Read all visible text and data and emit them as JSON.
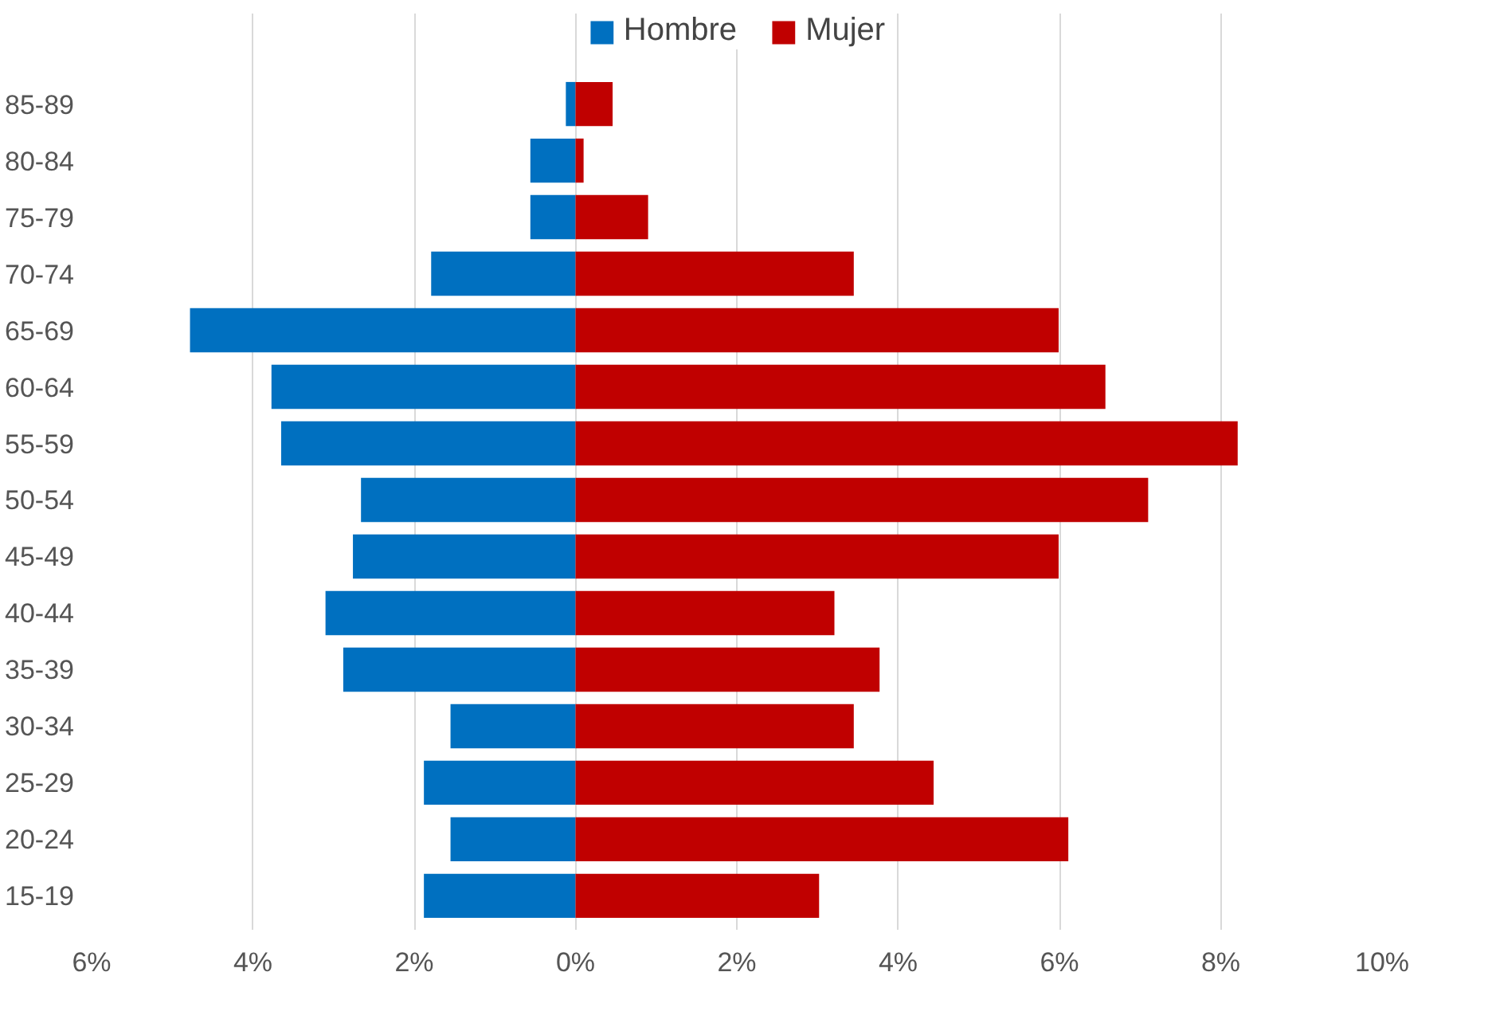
{
  "chart_data": {
    "type": "bar",
    "orientation": "horizontal",
    "stacked": true,
    "categories": [
      "85-89",
      "80-84",
      "75-79",
      "70-74",
      "65-69",
      "60-64",
      "55-59",
      "50-54",
      "45-49",
      "40-44",
      "35-39",
      "30-34",
      "25-29",
      "20-24",
      "15-19"
    ],
    "series": [
      {
        "name": "Hombre",
        "color": "#0070c0",
        "values": [
          -0.12,
          -0.56,
          -0.56,
          -1.79,
          -4.78,
          -3.77,
          -3.65,
          -2.66,
          -2.76,
          -3.1,
          -2.88,
          -1.55,
          -1.88,
          -1.55,
          -1.88
        ]
      },
      {
        "name": "Mujer",
        "color": "#c00000",
        "values": [
          0.46,
          0.1,
          0.9,
          3.45,
          5.99,
          6.57,
          8.21,
          7.1,
          5.99,
          3.21,
          3.77,
          3.45,
          4.44,
          6.11,
          3.02
        ]
      }
    ],
    "xlim": [
      -6,
      10
    ],
    "xticks": [
      {
        "value": -6,
        "label": "6%"
      },
      {
        "value": -4,
        "label": "4%"
      },
      {
        "value": -2,
        "label": "2%"
      },
      {
        "value": 0,
        "label": "0%"
      },
      {
        "value": 2,
        "label": "2%"
      },
      {
        "value": 4,
        "label": "4%"
      },
      {
        "value": 6,
        "label": "6%"
      },
      {
        "value": 8,
        "label": "8%"
      },
      {
        "value": 10,
        "label": "10%"
      }
    ],
    "grid": "x",
    "legend": "top"
  }
}
